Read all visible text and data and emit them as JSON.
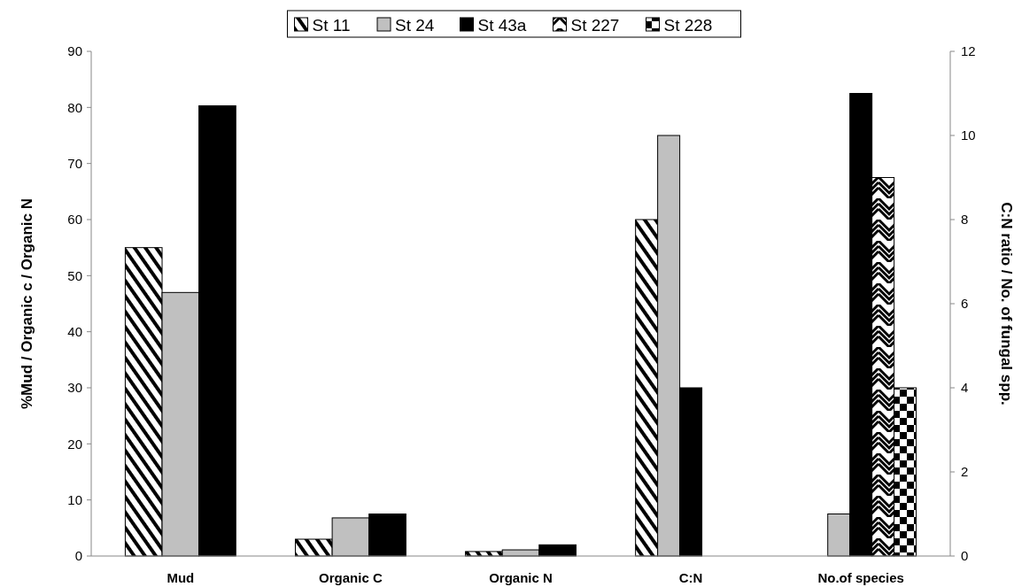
{
  "chart_data": {
    "type": "bar",
    "categories": [
      "Mud",
      "Organic C",
      "Organic N",
      "C:N",
      "No.of species"
    ],
    "ylabel": "%Mud / Organic c / Organic N",
    "y2label": "C:N ratio / No. of fungal spp.",
    "ylim": [
      0,
      90
    ],
    "yticks": [
      0,
      10,
      20,
      30,
      40,
      50,
      60,
      70,
      80,
      90
    ],
    "y2lim": [
      0,
      12
    ],
    "y2ticks": [
      0,
      2,
      4,
      6,
      8,
      10,
      12
    ],
    "legend": "top",
    "grid": false,
    "series": [
      {
        "name": "St 11",
        "color": "#000000",
        "axis": "y2",
        "values": [
          null,
          null,
          null,
          8,
          null
        ]
      },
      {
        "name": "St 24",
        "color": "#c0c0c0",
        "axis": "y2",
        "values": [
          null,
          null,
          null,
          10,
          1
        ]
      },
      {
        "name": "St 43a",
        "color": "#000000",
        "axis": "y2",
        "values": [
          null,
          null,
          null,
          4,
          11
        ]
      },
      {
        "name": "St 227",
        "color": "#000000",
        "axis": "y2",
        "values": [
          null,
          null,
          null,
          null,
          9
        ]
      },
      {
        "name": "St 228",
        "color": "#000000",
        "axis": "y2",
        "values": [
          null,
          null,
          null,
          null,
          4
        ]
      },
      {
        "color": "#000000",
        "axis": "y",
        "values": [
          55,
          3,
          0.8,
          null,
          null
        ]
      },
      {
        "color": "#c0c0c0",
        "axis": "y",
        "values": [
          47,
          6.8,
          1.1,
          null,
          null
        ]
      },
      {
        "color": "#000000",
        "axis": "y",
        "values": [
          80.3,
          7.5,
          2,
          null,
          null
        ]
      }
    ]
  }
}
